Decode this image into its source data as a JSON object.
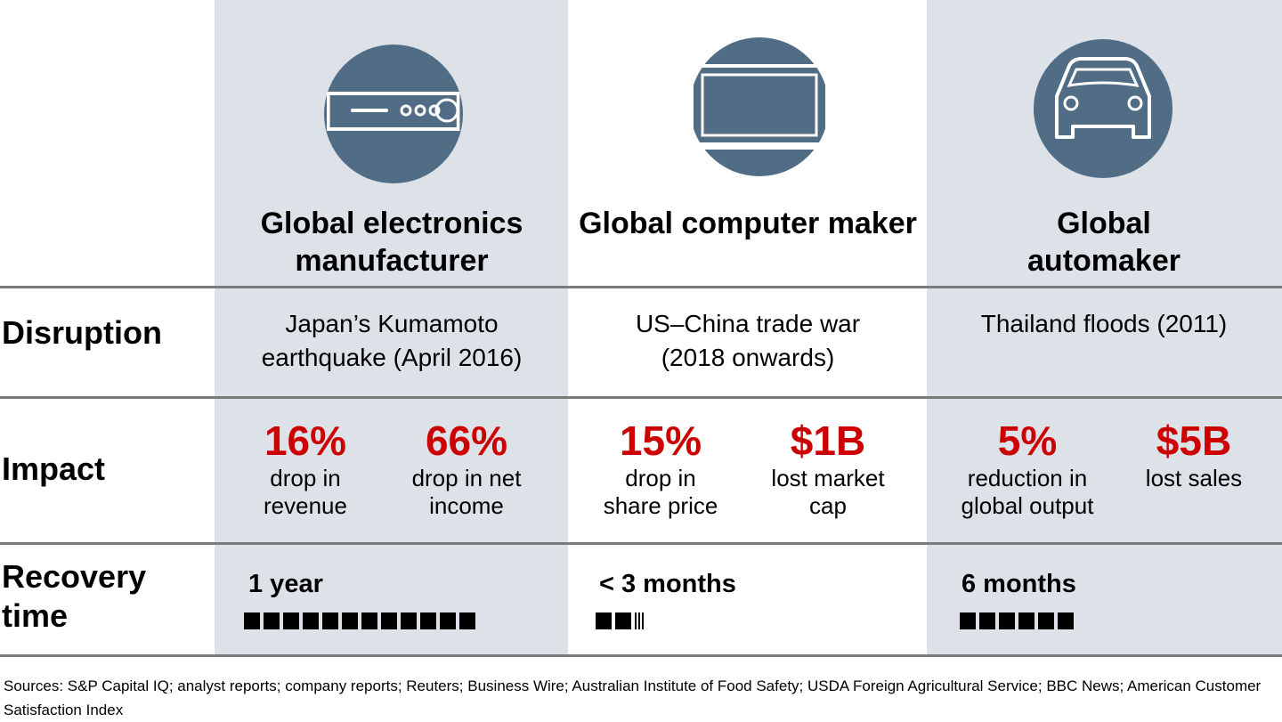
{
  "colors": {
    "band": "#dde2e8",
    "icon_circle": "#516c85",
    "impact": "#cc0000",
    "rule": "#7a7a7a"
  },
  "row_labels": {
    "disruption": "Disruption",
    "impact": "Impact",
    "recovery": "Recovery time"
  },
  "columns": [
    {
      "icon": "electronics-device-icon",
      "title": "Global electronics manufacturer",
      "disruption": "Japan’s Kumamoto earthquake (April 2016)",
      "impacts": [
        {
          "value": "16%",
          "desc": "drop in revenue"
        },
        {
          "value": "66%",
          "desc": "drop in net income"
        }
      ],
      "recovery": "1 year",
      "recovery_months": 12
    },
    {
      "icon": "laptop-icon",
      "title": "Global computer maker",
      "disruption": "US–China trade war (2018 onwards)",
      "impacts": [
        {
          "value": "15%",
          "desc": "drop in share price"
        },
        {
          "value": "$1B",
          "desc": "lost market cap"
        }
      ],
      "recovery": "< 3 months",
      "recovery_months": 2.5
    },
    {
      "icon": "car-icon",
      "title": "Global automaker",
      "disruption": "Thailand floods (2011)",
      "impacts": [
        {
          "value": "5%",
          "desc": "reduction in global output"
        },
        {
          "value": "$5B",
          "desc": "lost sales"
        }
      ],
      "recovery": "6 months",
      "recovery_months": 6
    }
  ],
  "footer": "Sources: S&P Capital IQ; analyst reports; company reports; Reuters; Business Wire; Australian Institute of Food Safety; USDA Foreign Agricultural Service; BBC News; American Customer Satisfaction Index"
}
